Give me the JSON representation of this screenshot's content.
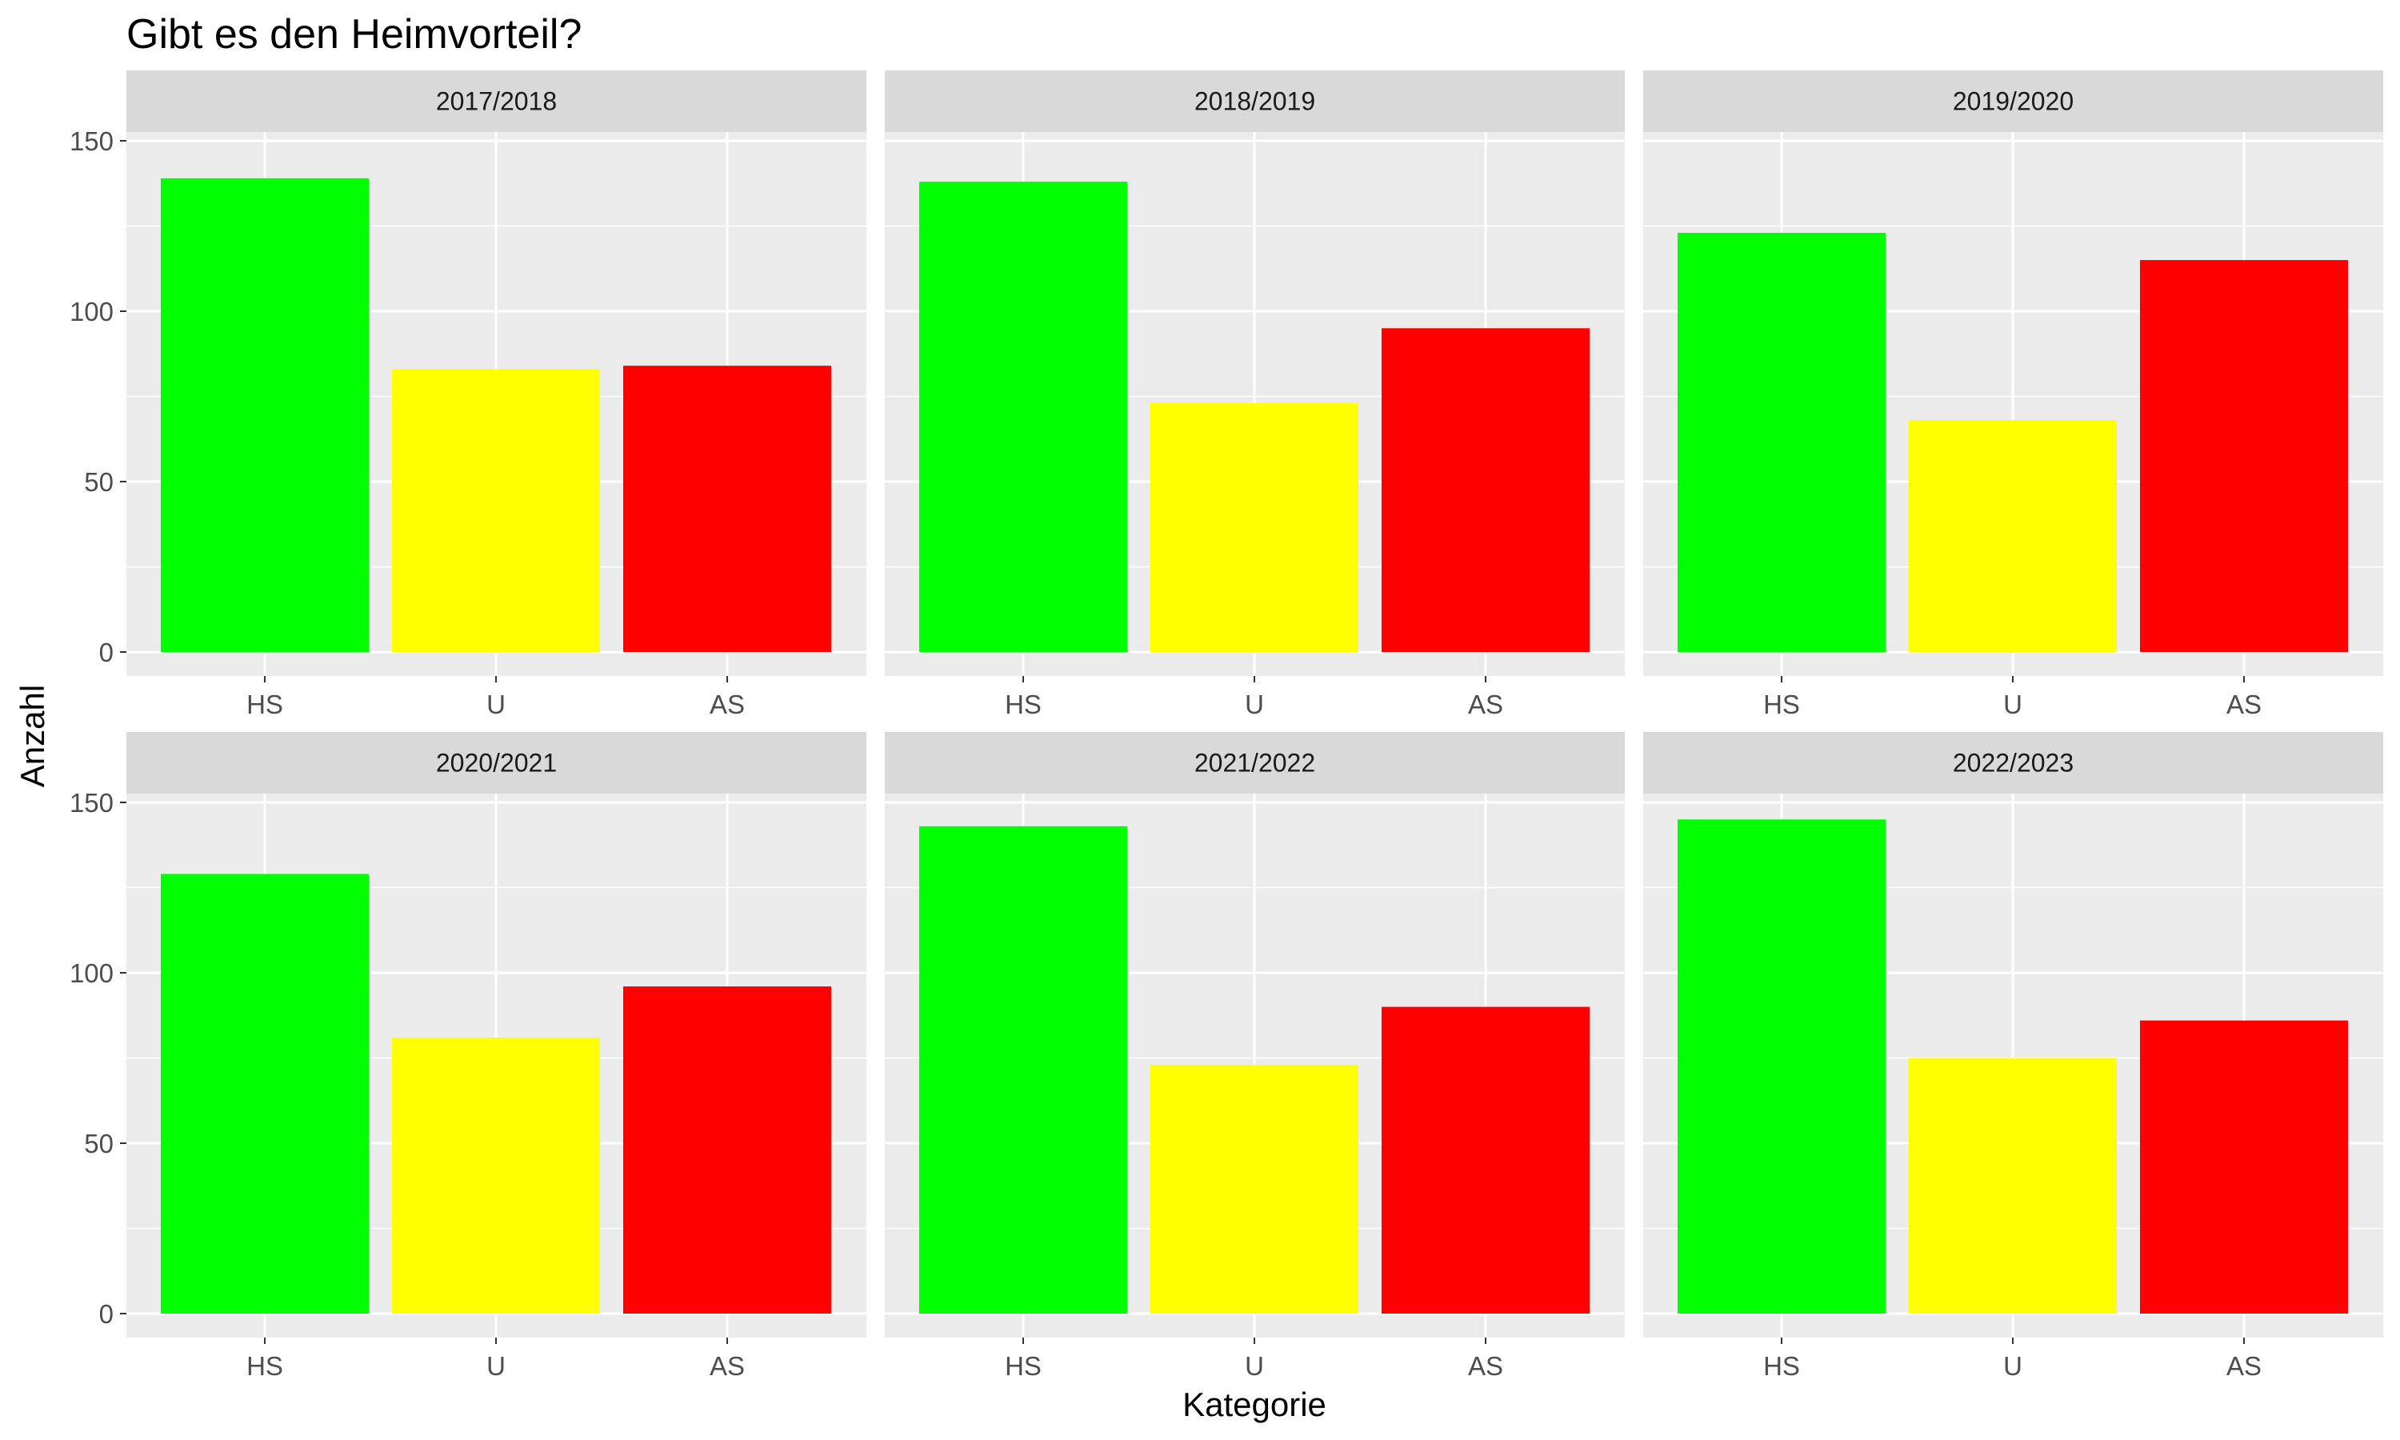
{
  "chart_data": {
    "type": "bar",
    "title": "Gibt es den Heimvorteil?",
    "xlabel": "Kategorie",
    "ylabel": "Anzahl",
    "categories": [
      "HS",
      "U",
      "AS"
    ],
    "ylim": [
      0,
      160
    ],
    "yticks": [
      0,
      50,
      100,
      150
    ],
    "grid": true,
    "facet_layout": "3 columns x 2 rows",
    "colors": {
      "HS": "#00FF00",
      "U": "#FFFF00",
      "AS": "#FF0000"
    },
    "panel_background": "#EBEBEB",
    "strip_background": "#D9D9D9",
    "grid_color": "#FFFFFF",
    "facets": [
      {
        "label": "2017/2018",
        "values": [
          139,
          83,
          84
        ]
      },
      {
        "label": "2018/2019",
        "values": [
          138,
          73,
          95
        ]
      },
      {
        "label": "2019/2020",
        "values": [
          123,
          68,
          115
        ]
      },
      {
        "label": "2020/2021",
        "values": [
          129,
          81,
          96
        ]
      },
      {
        "label": "2021/2022",
        "values": [
          143,
          73,
          90
        ]
      },
      {
        "label": "2022/2023",
        "values": [
          145,
          75,
          86
        ]
      }
    ]
  }
}
